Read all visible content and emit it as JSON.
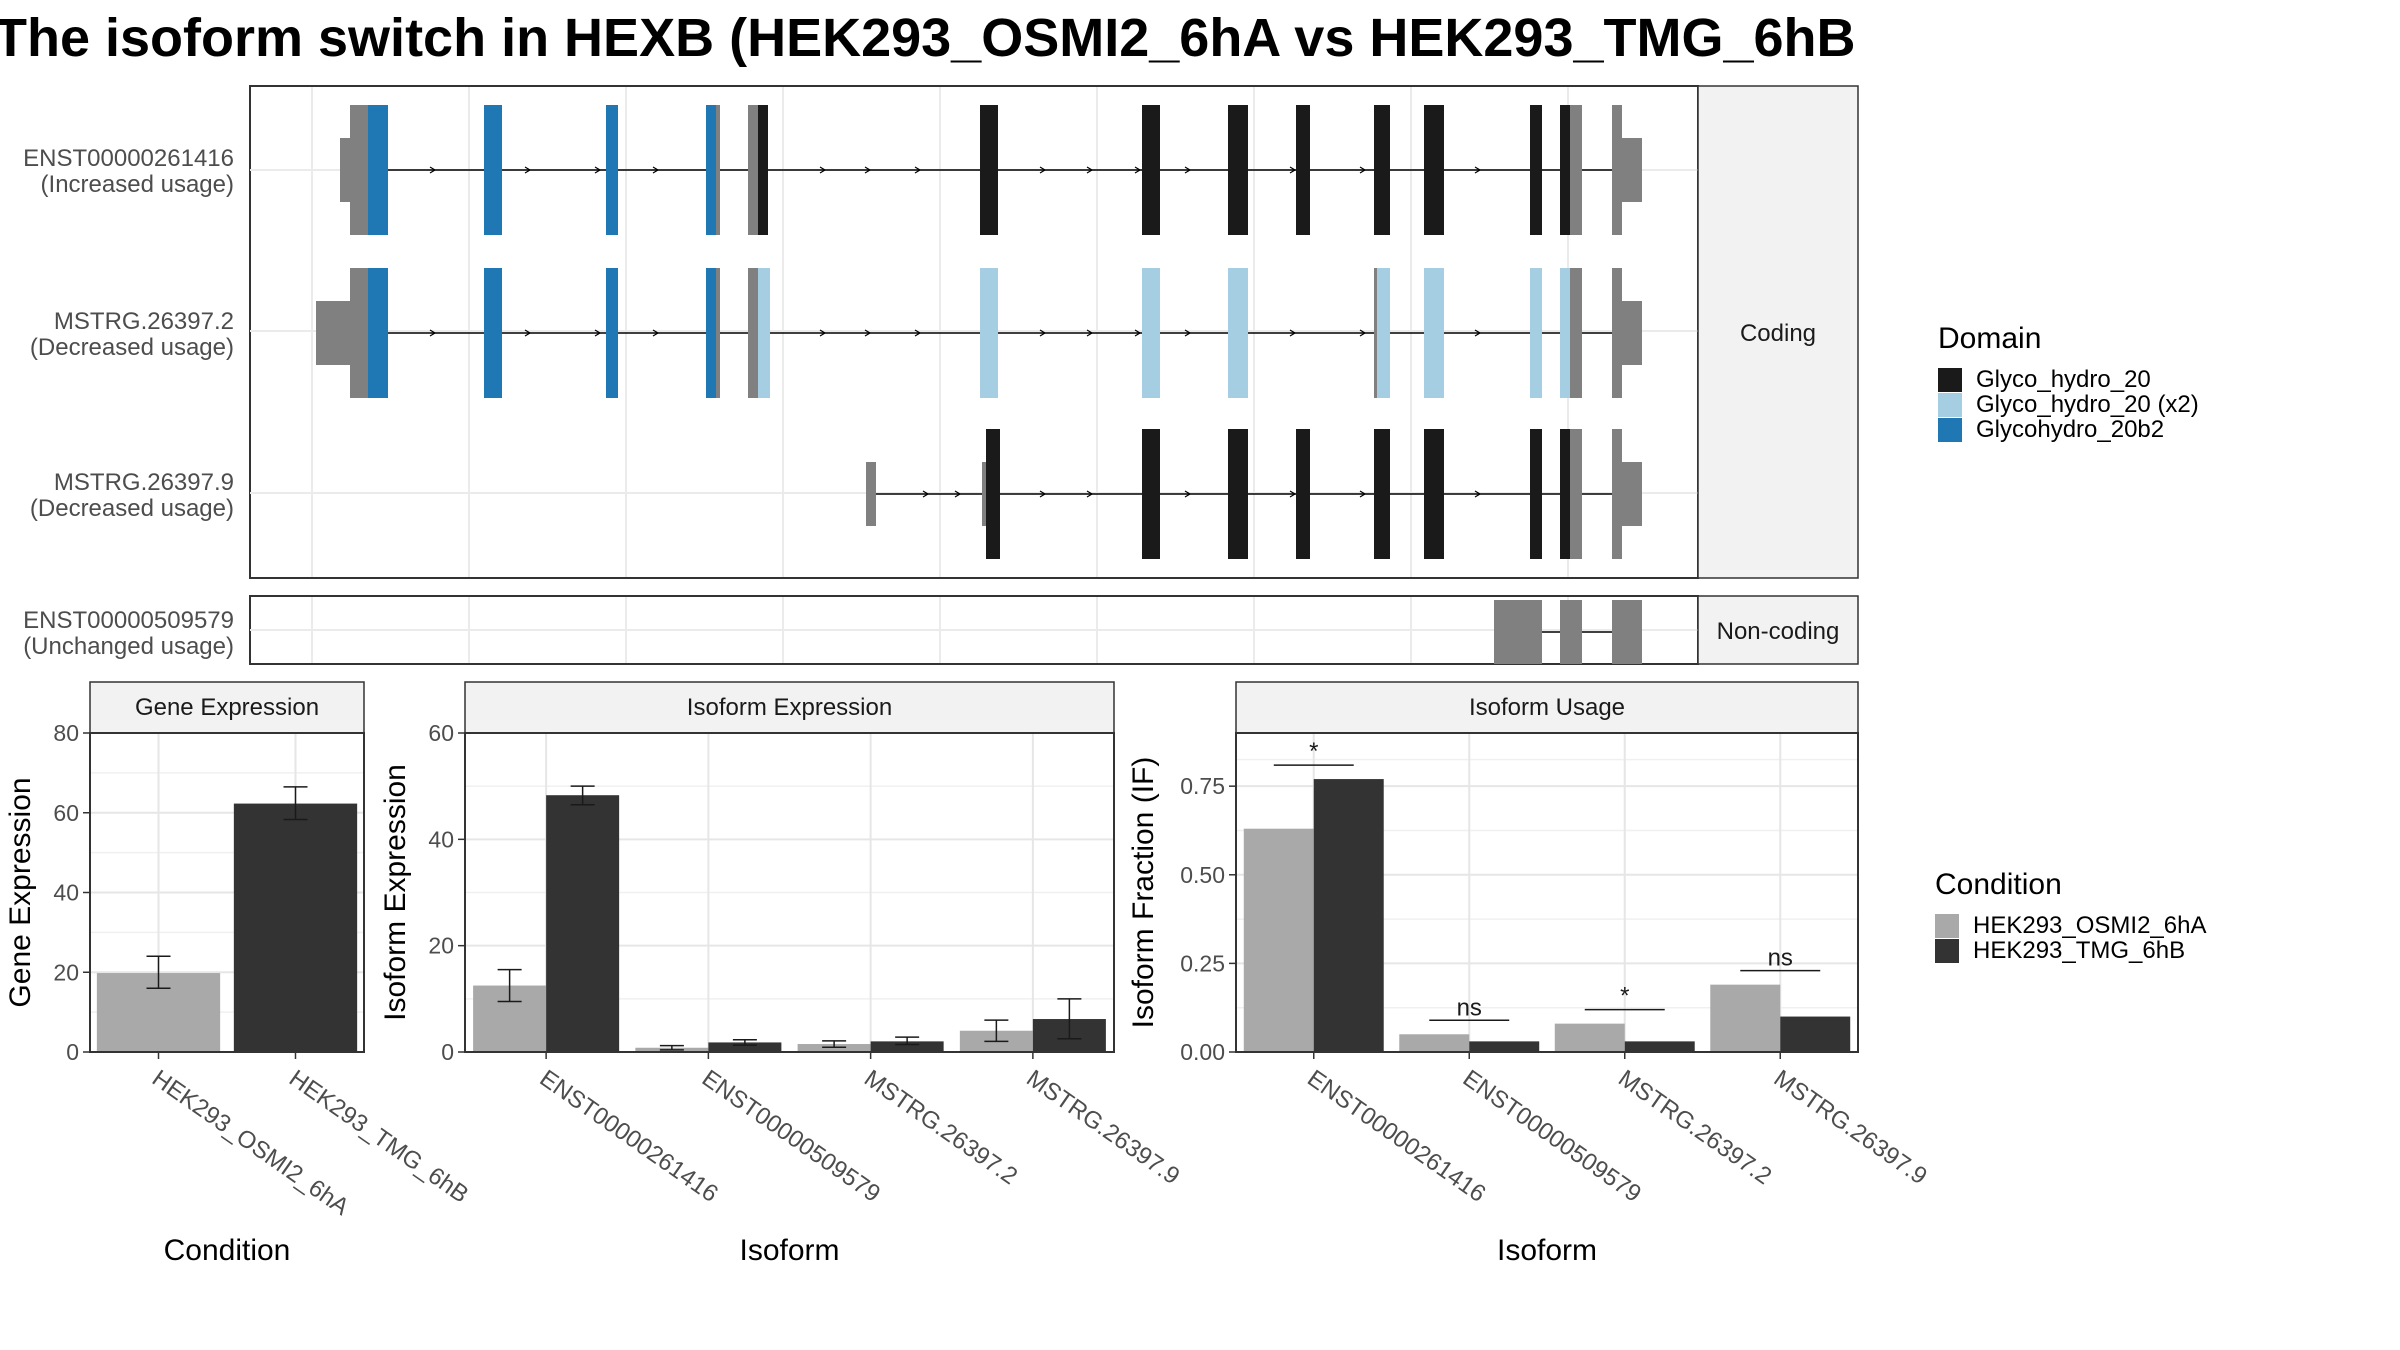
{
  "title": "The isoform switch in HEXB (HEK293_OSMI2_6hA vs HEK293_TMG_6hB",
  "structure": {
    "coding_label": "Coding",
    "noncoding_label": "Non-coding",
    "isoforms": [
      {
        "id": "ENST00000261416",
        "usage": "(Increased usage)",
        "group": "coding"
      },
      {
        "id": "MSTRG.26397.2",
        "usage": "(Decreased usage)",
        "group": "coding"
      },
      {
        "id": "MSTRG.26397.9",
        "usage": "(Decreased usage)",
        "group": "coding"
      },
      {
        "id": "ENST00000509579",
        "usage": "(Unchanged usage)",
        "group": "noncoding"
      }
    ]
  },
  "domain_legend": {
    "title": "Domain",
    "items": [
      {
        "label": "Glyco_hydro_20",
        "color": "#1a1a1a"
      },
      {
        "label": "Glyco_hydro_20 (x2)",
        "color": "#a6cee3"
      },
      {
        "label": "Glycohydro_20b2",
        "color": "#1f78b4"
      }
    ]
  },
  "condition_legend": {
    "title": "Condition",
    "items": [
      {
        "label": "HEK293_OSMI2_6hA",
        "color": "#a9a9a9"
      },
      {
        "label": "HEK293_TMG_6hB",
        "color": "#333333"
      }
    ]
  },
  "chart_data": [
    {
      "type": "bar",
      "title": "Gene Expression",
      "xlabel": "Condition",
      "ylabel": "Gene Expression",
      "ylim": [
        0,
        80
      ],
      "yticks": [
        0,
        20,
        40,
        60,
        80
      ],
      "categories": [
        "HEK293_OSMI2_6hA",
        "HEK293_TMG_6hB"
      ],
      "values": [
        19.8,
        62.3
      ],
      "errors": [
        [
          16.0,
          24.0
        ],
        [
          58.3,
          66.5
        ]
      ]
    },
    {
      "type": "bar",
      "title": "Isoform Expression",
      "xlabel": "Isoform",
      "ylabel": "Isoform Expression",
      "ylim": [
        0,
        60
      ],
      "yticks": [
        0,
        20,
        40,
        60
      ],
      "categories": [
        "ENST00000261416",
        "ENST00000509579",
        "MSTRG.26397.2",
        "MSTRG.26397.9"
      ],
      "series": [
        {
          "name": "HEK293_OSMI2_6hA",
          "values": [
            12.5,
            0.8,
            1.5,
            4.0
          ],
          "errors": [
            [
              9.5,
              15.5
            ],
            [
              0.4,
              1.2
            ],
            [
              0.9,
              2.1
            ],
            [
              2.0,
              6.0
            ]
          ]
        },
        {
          "name": "HEK293_TMG_6hB",
          "values": [
            48.3,
            1.8,
            2.0,
            6.2
          ],
          "errors": [
            [
              46.5,
              50.0
            ],
            [
              1.3,
              2.3
            ],
            [
              1.4,
              2.8
            ],
            [
              2.5,
              10.0
            ]
          ]
        }
      ]
    },
    {
      "type": "bar",
      "title": "Isoform Usage",
      "xlabel": "Isoform",
      "ylabel": "Isoform Fraction (IF)",
      "ylim": [
        0,
        0.9
      ],
      "yticks": [
        "0.00",
        "0.25",
        "0.50",
        "0.75"
      ],
      "categories": [
        "ENST00000261416",
        "ENST00000509579",
        "MSTRG.26397.2",
        "MSTRG.26397.9"
      ],
      "series": [
        {
          "name": "HEK293_OSMI2_6hA",
          "values": [
            0.63,
            0.05,
            0.08,
            0.19
          ]
        },
        {
          "name": "HEK293_TMG_6hB",
          "values": [
            0.77,
            0.03,
            0.03,
            0.1
          ]
        }
      ],
      "significance": [
        "*",
        "ns",
        "*",
        "ns"
      ]
    }
  ]
}
